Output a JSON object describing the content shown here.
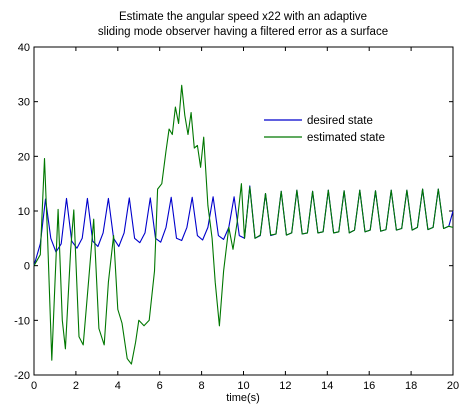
{
  "chart_data": {
    "type": "line",
    "title": [
      "Estimate the angular speed x22 with an adaptive",
      "sliding mode observer having a filtered error as a surface"
    ],
    "xlabel": "time(s)",
    "ylabel": "",
    "xlim": [
      0,
      20
    ],
    "ylim": [
      -20,
      40
    ],
    "xticks": [
      0,
      2,
      4,
      6,
      8,
      10,
      12,
      14,
      16,
      18,
      20
    ],
    "yticks": [
      -20,
      -10,
      0,
      10,
      20,
      30,
      40
    ],
    "grid": false,
    "legend_position": "upper-right",
    "series": [
      {
        "name": "desired state",
        "color": "#0000cc",
        "x": [
          0,
          0.3,
          0.55,
          0.8,
          1.05,
          1.3,
          1.55,
          1.8,
          2.05,
          2.3,
          2.55,
          2.8,
          3.05,
          3.3,
          3.55,
          3.8,
          4.05,
          4.3,
          4.55,
          4.8,
          5.05,
          5.3,
          5.55,
          5.8,
          6.05,
          6.3,
          6.55,
          6.8,
          7.05,
          7.3,
          7.55,
          7.8,
          8.05,
          8.3,
          8.55,
          8.8,
          9.05,
          9.3,
          9.55,
          9.8,
          10.05,
          10.3,
          10.55,
          10.8,
          11.05,
          11.3,
          11.55,
          11.8,
          12.05,
          12.3,
          12.55,
          12.8,
          13.05,
          13.3,
          13.55,
          13.8,
          14.05,
          14.3,
          14.55,
          14.8,
          15.05,
          15.3,
          15.55,
          15.8,
          16.05,
          16.3,
          16.55,
          16.8,
          17.05,
          17.3,
          17.55,
          17.8,
          18.05,
          18.3,
          18.55,
          18.8,
          19.05,
          19.3,
          19.55,
          19.8,
          20
        ],
        "y": [
          0,
          4,
          12.2,
          5,
          2.5,
          4,
          12.3,
          4.5,
          3.2,
          5,
          12.3,
          4.5,
          3.5,
          6,
          12.3,
          5,
          3.5,
          6,
          12.4,
          5,
          4.2,
          6,
          12.4,
          5,
          4.3,
          7,
          12.5,
          5,
          4.6,
          7,
          12.5,
          5.5,
          4.7,
          7,
          12.6,
          5.5,
          4.8,
          7,
          12.6,
          5.5,
          5,
          14.6,
          5,
          5.5,
          13.2,
          5.5,
          5.8,
          13.6,
          5.6,
          6,
          13.8,
          5.8,
          6,
          13.6,
          6,
          6.2,
          13.8,
          6,
          6.2,
          13.7,
          6,
          6.5,
          13.8,
          6.2,
          6.5,
          13.7,
          6.3,
          6.6,
          13.8,
          6.5,
          6.8,
          13.8,
          6.5,
          7,
          14,
          6.6,
          7,
          14,
          6.8,
          7.2,
          10
        ]
      },
      {
        "name": "estimated state",
        "color": "#007700",
        "x": [
          0,
          0.3,
          0.5,
          0.65,
          0.85,
          1.0,
          1.15,
          1.35,
          1.5,
          1.75,
          1.9,
          2.15,
          2.35,
          2.6,
          2.85,
          3.1,
          3.35,
          3.55,
          3.8,
          4.0,
          4.2,
          4.45,
          4.65,
          4.85,
          5.0,
          5.25,
          5.5,
          5.75,
          5.9,
          6.1,
          6.3,
          6.45,
          6.6,
          6.75,
          6.9,
          7.05,
          7.2,
          7.35,
          7.5,
          7.65,
          7.8,
          7.95,
          8.1,
          8.3,
          8.5,
          8.65,
          8.85,
          9.05,
          9.3,
          9.5,
          9.7,
          9.9,
          10.05,
          10.3,
          10.55,
          10.8,
          11.05,
          11.3,
          11.55,
          11.8,
          12.05,
          12.3,
          12.55,
          12.8,
          13.05,
          13.3,
          13.55,
          13.8,
          14.05,
          14.3,
          14.55,
          14.8,
          15.05,
          15.3,
          15.55,
          15.8,
          16.05,
          16.3,
          16.55,
          16.8,
          17.05,
          17.3,
          17.55,
          17.8,
          18.05,
          18.3,
          18.55,
          18.8,
          19.05,
          19.3,
          19.55,
          19.8,
          20
        ],
        "y": [
          0,
          2,
          19.6,
          5,
          -17.3,
          -3,
          10.3,
          -10,
          -15.2,
          3,
          10.2,
          -13,
          -14.5,
          -3,
          8.5,
          -11.5,
          -14.5,
          -3,
          5.5,
          -8,
          -10.5,
          -17,
          -18,
          -14,
          -10,
          -11,
          -10,
          -1,
          14,
          15,
          21,
          25,
          24,
          29,
          26,
          33,
          27.5,
          24,
          28,
          21.5,
          22,
          18,
          23.5,
          11,
          5,
          -3,
          -11,
          -1,
          7,
          3,
          8,
          15,
          5,
          14.4,
          5,
          5.6,
          13.2,
          5.6,
          5.8,
          13.6,
          5.6,
          6,
          13.8,
          5.8,
          6,
          13.6,
          6,
          6.2,
          13.8,
          6,
          6.2,
          13.7,
          6,
          6.5,
          13.8,
          6.2,
          6.5,
          13.7,
          6.3,
          6.6,
          13.8,
          6.5,
          6.8,
          13.8,
          6.5,
          7,
          14,
          6.6,
          7,
          14,
          6.8,
          7.2,
          7
        ]
      }
    ]
  }
}
